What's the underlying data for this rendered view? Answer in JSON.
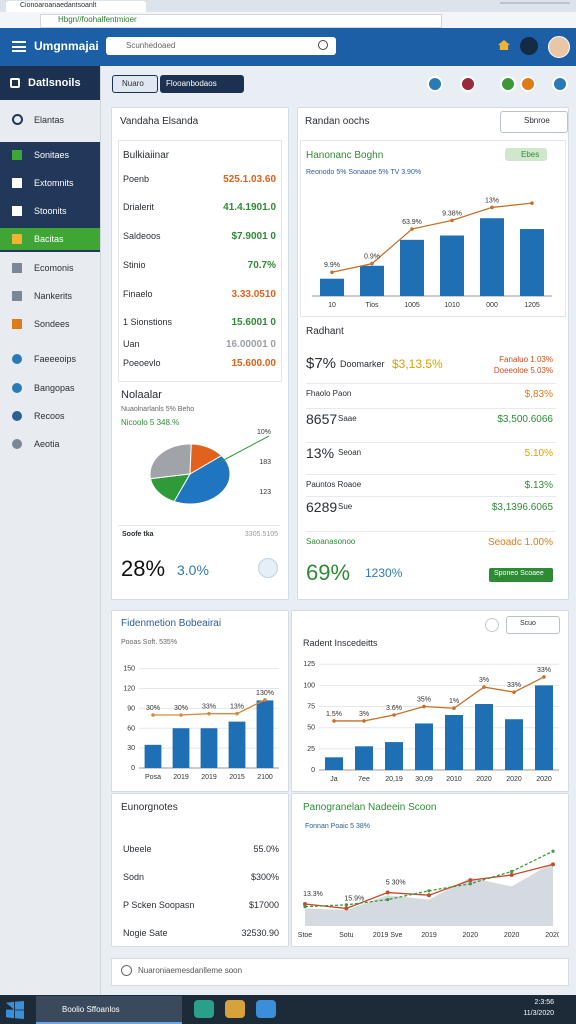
{
  "browser": {
    "tab": "Cionoaroanaedantsoanlt",
    "url": "Hbgn//foohalfentmioer"
  },
  "header": {
    "app": "Umgnmajai",
    "search": "Scunhedoaed"
  },
  "sidebar": {
    "title": "Datlsnoils",
    "section": "Elantas",
    "items": [
      "Sonitaes",
      "Extomnits",
      "Stoonits",
      "Bacitas",
      "Ecomonis",
      "Nankerits",
      "Sondees",
      "Faeeeoips",
      "Bangopas",
      "Recoos",
      "Aeotia"
    ]
  },
  "toolbar": {
    "tab1": "Nuaro",
    "tab2": "Flooanbodaos"
  },
  "left_panel": {
    "title": "Vandaha Elsanda",
    "list_title": "Bulkiaiinar",
    "rows": [
      {
        "label": "Poenb",
        "value": "525.1.03.60",
        "color": "#e0621b"
      },
      {
        "label": "Drialerit",
        "value": "41.4.1901.0",
        "color": "#2e8b35"
      },
      {
        "label": "Saldeoos",
        "value": "$7.9001 0",
        "color": "#2e8b35"
      },
      {
        "label": "Stinio",
        "value": "70.7%",
        "color": "#2e8b35"
      },
      {
        "label": "Finaelo",
        "value": "3.33.0510",
        "color": "#e0621b"
      },
      {
        "label": "1 Sionstions",
        "value": "15.6001 0",
        "color": "#2e8b35"
      },
      {
        "label": "Uan",
        "value": "16.00001 0",
        "color": "#9aa0a6"
      },
      {
        "label": "Poeoevlo",
        "value": "15.600.00",
        "color": "#e0621b"
      }
    ],
    "pie_title": "Nolaalar",
    "pie_subtitle": "Nuaolnarlanls 5% Beho",
    "pie_note": "Nicoolo 5 348.%",
    "stat_label": "Soofe tka",
    "stat_note": "3305.5105",
    "big": "28%",
    "big2": "3.0%"
  },
  "right_panel": {
    "title": "Randan oochs",
    "dropdown": "Sbnroe",
    "card_title": "Hanonanc Boghn",
    "badge": "Ebes",
    "card_subtitle": "Reonodo 5% Sonaaoe 5% TV 3.90%"
  },
  "radhant": {
    "title": "Radhant",
    "headline": {
      "big": "$7%",
      "label": "Doomarker",
      "value": "$3,13.5%",
      "notes": [
        "Fanaluo 1.03%",
        "Doeeoloe 5.03%"
      ]
    },
    "rows": [
      {
        "label": "Fhaolo Paon",
        "value": "$,83%",
        "color": "#e07b1a"
      },
      {
        "big": "8657",
        "label": "Saae",
        "value": "$3,500.6066",
        "color": "#2e8b35"
      },
      {
        "big": "13%",
        "label": "Seoan",
        "value": "5.10%",
        "color": "#d9a000"
      },
      {
        "label": "Pauntos Roaoe",
        "value": "$.13%",
        "color": "#2e8b35"
      },
      {
        "big": "6289",
        "label": "Sue",
        "value": "$3,1396.6065",
        "color": "#2e8b35"
      },
      {
        "label": "Saoanasonoo",
        "value": "Seoadc 1.00%",
        "color": "#e07b1a"
      }
    ],
    "big": "69%",
    "big2": "1230%",
    "button": "Sponeo Scoaee"
  },
  "row2": {
    "left_title": "Fidenmetion Bobeairai",
    "left_subtitle": "Pooas Soft. 535%",
    "right_title": "Radent Inscedeitts",
    "right_dropdown": "Scuo"
  },
  "list2": {
    "title": "Eunorgnotes",
    "rows": [
      {
        "label": "Ubeele",
        "value": "55.0%"
      },
      {
        "label": "Sodn",
        "value": "$300%"
      },
      {
        "label": "P Scken Soopasn",
        "value": "$17000"
      },
      {
        "label": "Nogie Sate",
        "value": "32530.90"
      }
    ]
  },
  "area_panel": {
    "title": "Panogranelan Nadeein Scoon",
    "subtitle": "Fonnan Poaic 5 38%"
  },
  "footer": {
    "text": "Nuaroniaemesdanlleme soon"
  },
  "taskbar": {
    "app": "Boolio Sffoanlos",
    "time": "2:3:56",
    "date": "11/3/2020"
  },
  "charts": [
    {
      "type": "bar-line",
      "categories": [
        "10",
        "Tios",
        "1005",
        "1010",
        "000",
        "1205"
      ],
      "bars": [
        16,
        28,
        52,
        56,
        72,
        62
      ],
      "line": [
        22,
        30,
        62,
        70,
        82,
        86
      ],
      "ylim": [
        0,
        100
      ],
      "bar_color": "#1f6fb5",
      "line_color": "#c8702a",
      "annotations": [
        "9.9%",
        "0.9%",
        "63.9%",
        "9.38%",
        "13%"
      ]
    },
    {
      "type": "bar-line",
      "categories": [
        "Posa",
        "2019",
        "2019",
        "2015",
        "2100"
      ],
      "bars": [
        35,
        60,
        60,
        70,
        102
      ],
      "line": [
        80,
        80,
        82,
        82,
        103
      ],
      "ylim": [
        0,
        160
      ],
      "yticks": [
        0,
        30,
        60,
        90,
        120,
        150
      ],
      "bar_color": "#1f6fb5",
      "line_color": "#d88a3a",
      "annotations": [
        "30%",
        "30%",
        "33%",
        "13%",
        "130%"
      ]
    },
    {
      "type": "bar-line",
      "categories": [
        "Ja",
        "7ee",
        "20,19",
        "30,09",
        "2010",
        "2020",
        "2020",
        "2020"
      ],
      "bars": [
        15,
        28,
        33,
        55,
        65,
        78,
        60,
        100
      ],
      "line": [
        58,
        58,
        65,
        75,
        73,
        98,
        92,
        110
      ],
      "ylim": [
        0,
        130
      ],
      "yticks": [
        0,
        25,
        50,
        75,
        100,
        125
      ],
      "bar_color": "#1f6fb5",
      "line_color": "#c8702a",
      "annotations": [
        "1.5%",
        "3%",
        "3.6%",
        "35%",
        "1%",
        "3%",
        "33%",
        "33%"
      ]
    },
    {
      "type": "area-line",
      "categories": [
        "Stoe",
        "Sotu",
        "2019 Sve",
        "2019",
        "2020",
        "2020",
        "2020"
      ],
      "area": [
        20,
        18,
        35,
        30,
        55,
        45,
        72
      ],
      "line": [
        25,
        20,
        38,
        35,
        52,
        58,
        70
      ],
      "line2": [
        22,
        24,
        30,
        40,
        48,
        62,
        85
      ],
      "ylim": [
        0,
        100
      ],
      "area_color": "#d5d9e0",
      "line_color": "#c84a2a",
      "line2_color": "#3a9a3a",
      "annotations": [
        "13.3%",
        "15.9%",
        "5 30%"
      ]
    },
    {
      "type": "pie",
      "values": [
        28,
        14,
        42,
        16
      ],
      "colors": [
        "#a0a4a8",
        "#e2621b",
        "#1f75bf",
        "#2e9a3a"
      ],
      "annotations": [
        "10%",
        "183",
        "123"
      ]
    }
  ]
}
